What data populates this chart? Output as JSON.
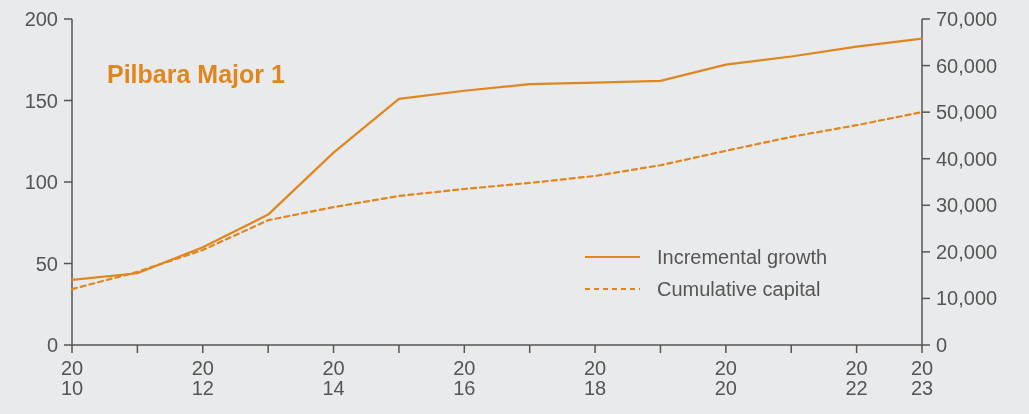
{
  "chart_data": {
    "type": "line",
    "title": "Pilbara Major 1",
    "x": [
      2010,
      2011,
      2012,
      2013,
      2014,
      2015,
      2016,
      2017,
      2018,
      2019,
      2020,
      2021,
      2022,
      2023
    ],
    "series": [
      {
        "name": "Incremental growth",
        "color": "#e0861e",
        "line_style": "solid",
        "values": [
          40,
          44,
          60,
          80,
          118,
          151,
          156,
          160,
          161,
          162,
          172,
          177,
          183,
          188
        ]
      },
      {
        "name": "Cumulative capital",
        "color": "#e0861e",
        "line_style": "dashed",
        "axis": "y2",
        "values": [
          12000,
          15700,
          20400,
          26800,
          29600,
          32000,
          33500,
          34800,
          36300,
          38600,
          41700,
          44700,
          47200,
          50000
        ]
      }
    ],
    "xlim": [
      2010,
      2023
    ],
    "xticks": [
      2010,
      {
        "value": 2011,
        "label": null
      },
      2012,
      {
        "value": 2013,
        "label": null
      },
      2014,
      {
        "value": 2015,
        "label": null
      },
      2016,
      {
        "value": 2017,
        "label": null
      },
      2018,
      {
        "value": 2019,
        "label": null
      },
      2020,
      {
        "value": 2021,
        "label": null
      },
      2022,
      2023
    ],
    "ylim": [
      0,
      200
    ],
    "yticks": [
      0,
      50,
      100,
      150,
      200
    ],
    "y2lim": [
      0,
      70000
    ],
    "y2ticks": [
      0,
      {
        "value": 10000,
        "label": "10,000"
      },
      {
        "value": 20000,
        "label": "20,000"
      },
      {
        "value": 30000,
        "label": "30,000"
      },
      {
        "value": 40000,
        "label": "40,000"
      },
      {
        "value": 50000,
        "label": "50,000"
      },
      {
        "value": 60000,
        "label": "60,000"
      },
      {
        "value": 70000,
        "label": "70,000"
      }
    ],
    "grid": false,
    "legend": "bottom right",
    "marker": "none"
  }
}
